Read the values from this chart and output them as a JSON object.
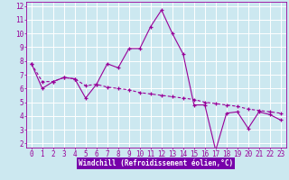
{
  "xlabel": "Windchill (Refroidissement éolien,°C)",
  "line1_x": [
    0,
    1,
    2,
    3,
    4,
    5,
    6,
    7,
    8,
    9,
    10,
    11,
    12,
    13,
    14,
    15,
    16,
    17,
    18,
    19,
    20,
    21,
    22,
    23
  ],
  "line1_y": [
    7.8,
    6.0,
    6.5,
    6.8,
    6.7,
    5.3,
    6.3,
    7.8,
    7.5,
    8.9,
    8.9,
    10.5,
    11.7,
    10.0,
    8.5,
    4.8,
    4.8,
    1.5,
    4.2,
    4.3,
    3.1,
    4.3,
    4.1,
    3.7
  ],
  "line2_x": [
    0,
    1,
    2,
    3,
    4,
    5,
    6,
    7,
    8,
    9,
    10,
    11,
    12,
    13,
    14,
    15,
    16,
    17,
    18,
    19,
    20,
    21,
    22,
    23
  ],
  "line2_y": [
    7.8,
    6.5,
    6.5,
    6.8,
    6.7,
    6.2,
    6.3,
    6.1,
    6.0,
    5.9,
    5.7,
    5.6,
    5.5,
    5.4,
    5.3,
    5.2,
    5.0,
    4.9,
    4.8,
    4.7,
    4.5,
    4.4,
    4.3,
    4.2
  ],
  "color": "#990099",
  "bg_color": "#cce8f0",
  "grid_color": "#ffffff",
  "xlabel_bg": "#7f00ff",
  "xlim": [
    -0.5,
    23.5
  ],
  "ylim": [
    1.7,
    12.3
  ],
  "xticks": [
    0,
    1,
    2,
    3,
    4,
    5,
    6,
    7,
    8,
    9,
    10,
    11,
    12,
    13,
    14,
    15,
    16,
    17,
    18,
    19,
    20,
    21,
    22,
    23
  ],
  "yticks": [
    2,
    3,
    4,
    5,
    6,
    7,
    8,
    9,
    10,
    11,
    12
  ],
  "tick_fontsize": 5.5,
  "label_fontsize": 5.5
}
